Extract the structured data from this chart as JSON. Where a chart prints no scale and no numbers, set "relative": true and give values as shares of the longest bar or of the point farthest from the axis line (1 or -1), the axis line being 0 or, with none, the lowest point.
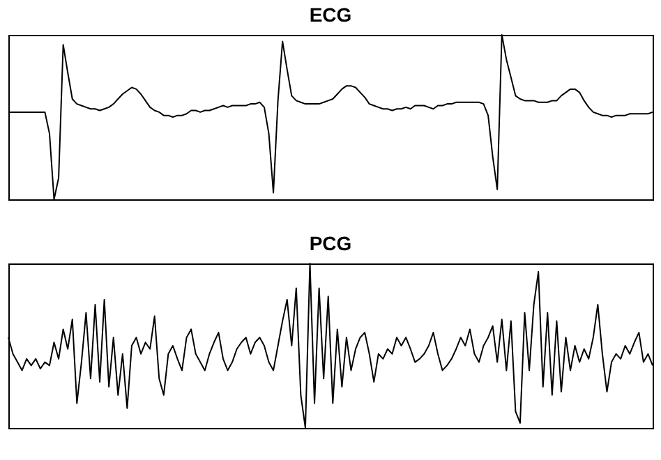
{
  "chart_data": [
    {
      "type": "line",
      "title": "ECG",
      "relative": true,
      "tick_labels": false,
      "color": "#000000",
      "categories": [
        null,
        null,
        null,
        null,
        null,
        null,
        null,
        null,
        null,
        null,
        null,
        null,
        null,
        null,
        null,
        null,
        null,
        null,
        null,
        null,
        null,
        null,
        null,
        null,
        null,
        null,
        null,
        null,
        null,
        null,
        null,
        null,
        null,
        null,
        null,
        null,
        null,
        null,
        null,
        null,
        null,
        null,
        null,
        null,
        null,
        null,
        null,
        null,
        null,
        null,
        null,
        null,
        null,
        null,
        null,
        null,
        null,
        null,
        null,
        null,
        null,
        null,
        null,
        null,
        null,
        null,
        null,
        null,
        null,
        null,
        null,
        null,
        null,
        null,
        null,
        null,
        null,
        null,
        null,
        null,
        null,
        null,
        null,
        null,
        null,
        null,
        null,
        null,
        null,
        null,
        null,
        null,
        null,
        null,
        null,
        null,
        null,
        null,
        null,
        null,
        null,
        null,
        null,
        null,
        null,
        null,
        null,
        null,
        null,
        null,
        null,
        null,
        null,
        null,
        null,
        null,
        null,
        null,
        null,
        null,
        null,
        null,
        null,
        null,
        null,
        null,
        null,
        null,
        null,
        null,
        null,
        null,
        null,
        null,
        null,
        null,
        null,
        null,
        null,
        null,
        null,
        null
      ],
      "values": [
        0.53,
        0.53,
        0.53,
        0.53,
        0.53,
        0.53,
        0.53,
        0.53,
        0.53,
        0.4,
        0,
        0.13,
        0.94,
        0.77,
        0.61,
        0.58,
        0.57,
        0.56,
        0.55,
        0.55,
        0.54,
        0.55,
        0.56,
        0.58,
        0.61,
        0.64,
        0.66,
        0.68,
        0.67,
        0.64,
        0.6,
        0.56,
        0.54,
        0.53,
        0.51,
        0.51,
        0.5,
        0.51,
        0.51,
        0.52,
        0.54,
        0.54,
        0.53,
        0.54,
        0.54,
        0.55,
        0.56,
        0.57,
        0.56,
        0.57,
        0.57,
        0.57,
        0.57,
        0.58,
        0.58,
        0.59,
        0.56,
        0.4,
        0.04,
        0.6,
        0.96,
        0.79,
        0.63,
        0.6,
        0.59,
        0.58,
        0.58,
        0.58,
        0.58,
        0.59,
        0.6,
        0.61,
        0.64,
        0.67,
        0.69,
        0.69,
        0.68,
        0.65,
        0.62,
        0.58,
        0.57,
        0.56,
        0.55,
        0.55,
        0.54,
        0.55,
        0.55,
        0.56,
        0.55,
        0.57,
        0.57,
        0.57,
        0.56,
        0.55,
        0.57,
        0.57,
        0.58,
        0.58,
        0.59,
        0.59,
        0.59,
        0.59,
        0.59,
        0.59,
        0.58,
        0.51,
        0.26,
        0.06,
        1,
        0.85,
        0.74,
        0.63,
        0.61,
        0.6,
        0.6,
        0.6,
        0.59,
        0.59,
        0.59,
        0.6,
        0.6,
        0.63,
        0.65,
        0.67,
        0.67,
        0.65,
        0.6,
        0.56,
        0.53,
        0.52,
        0.51,
        0.51,
        0.5,
        0.51,
        0.51,
        0.51,
        0.52,
        0.52,
        0.52,
        0.52,
        0.52,
        0.53
      ]
    },
    {
      "type": "line",
      "title": "PCG",
      "relative": true,
      "tick_labels": false,
      "color": "#000000",
      "categories": [
        null,
        null,
        null,
        null,
        null,
        null,
        null,
        null,
        null,
        null,
        null,
        null,
        null,
        null,
        null,
        null,
        null,
        null,
        null,
        null,
        null,
        null,
        null,
        null,
        null,
        null,
        null,
        null,
        null,
        null,
        null,
        null,
        null,
        null,
        null,
        null,
        null,
        null,
        null,
        null,
        null,
        null,
        null,
        null,
        null,
        null,
        null,
        null,
        null,
        null,
        null,
        null,
        null,
        null,
        null,
        null,
        null,
        null,
        null,
        null,
        null,
        null,
        null,
        null,
        null,
        null,
        null,
        null,
        null,
        null,
        null,
        null,
        null,
        null,
        null,
        null,
        null,
        null,
        null,
        null,
        null,
        null,
        null,
        null,
        null,
        null,
        null,
        null,
        null,
        null,
        null,
        null,
        null,
        null,
        null,
        null,
        null,
        null,
        null,
        null,
        null,
        null,
        null,
        null,
        null,
        null,
        null,
        null,
        null,
        null,
        null,
        null,
        null,
        null,
        null,
        null,
        null,
        null,
        null,
        null,
        null,
        null,
        null,
        null,
        null,
        null,
        null,
        null,
        null,
        null,
        null,
        null,
        null,
        null,
        null,
        null,
        null,
        null,
        null,
        null,
        null,
        null
      ],
      "values": [
        0.55,
        0.45,
        0.4,
        0.35,
        0.42,
        0.38,
        0.42,
        0.36,
        0.4,
        0.38,
        0.52,
        0.42,
        0.6,
        0.48,
        0.66,
        0.15,
        0.4,
        0.7,
        0.3,
        0.75,
        0.28,
        0.78,
        0.25,
        0.55,
        0.2,
        0.45,
        0.12,
        0.5,
        0.55,
        0.45,
        0.52,
        0.48,
        0.68,
        0.3,
        0.2,
        0.45,
        0.5,
        0.42,
        0.35,
        0.55,
        0.6,
        0.45,
        0.4,
        0.35,
        0.45,
        0.52,
        0.58,
        0.42,
        0.35,
        0.4,
        0.48,
        0.52,
        0.55,
        0.45,
        0.52,
        0.55,
        0.5,
        0.4,
        0.35,
        0.5,
        0.65,
        0.78,
        0.5,
        0.85,
        0.2,
        0,
        1,
        0.15,
        0.85,
        0.3,
        0.8,
        0.15,
        0.6,
        0.25,
        0.55,
        0.35,
        0.48,
        0.55,
        0.58,
        0.45,
        0.28,
        0.45,
        0.42,
        0.48,
        0.45,
        0.55,
        0.5,
        0.55,
        0.48,
        0.4,
        0.42,
        0.45,
        0.5,
        0.58,
        0.45,
        0.35,
        0.38,
        0.42,
        0.48,
        0.55,
        0.5,
        0.6,
        0.45,
        0.4,
        0.5,
        0.55,
        0.62,
        0.4,
        0.66,
        0.35,
        0.65,
        0.1,
        0.03,
        0.7,
        0.35,
        0.75,
        0.95,
        0.25,
        0.7,
        0.2,
        0.65,
        0.22,
        0.55,
        0.35,
        0.5,
        0.4,
        0.48,
        0.42,
        0.55,
        0.75,
        0.45,
        0.22,
        0.4,
        0.45,
        0.42,
        0.5,
        0.45,
        0.52,
        0.58,
        0.4,
        0.45,
        0.38
      ]
    }
  ]
}
